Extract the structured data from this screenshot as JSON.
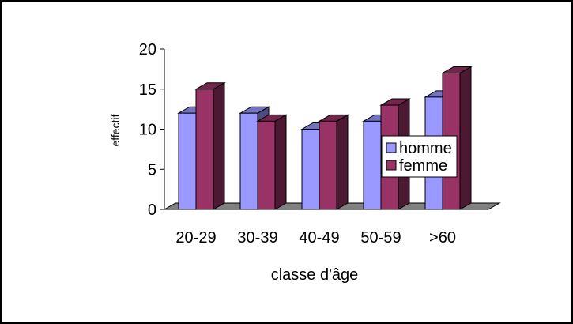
{
  "chart_data": {
    "type": "bar",
    "title": "",
    "xlabel": "classe d'âge",
    "ylabel": "effectif",
    "categories": [
      "20-29",
      "30-39",
      "40-49",
      "50-59",
      ">60"
    ],
    "ylim": [
      0,
      20
    ],
    "yticks": [
      "0",
      "5",
      "10",
      "15",
      "20"
    ],
    "grid": false,
    "legend_position": "right",
    "series": [
      {
        "name": "homme",
        "values": [
          12,
          12,
          10,
          11,
          14
        ],
        "color": "#9999FF",
        "side_color": "#4C4C80",
        "top_color": "#7373BF"
      },
      {
        "name": "femme",
        "values": [
          15,
          11,
          11,
          13,
          17
        ],
        "color": "#993366",
        "side_color": "#4C1933",
        "top_color": "#73264C"
      }
    ],
    "floor_color": "#808080"
  }
}
